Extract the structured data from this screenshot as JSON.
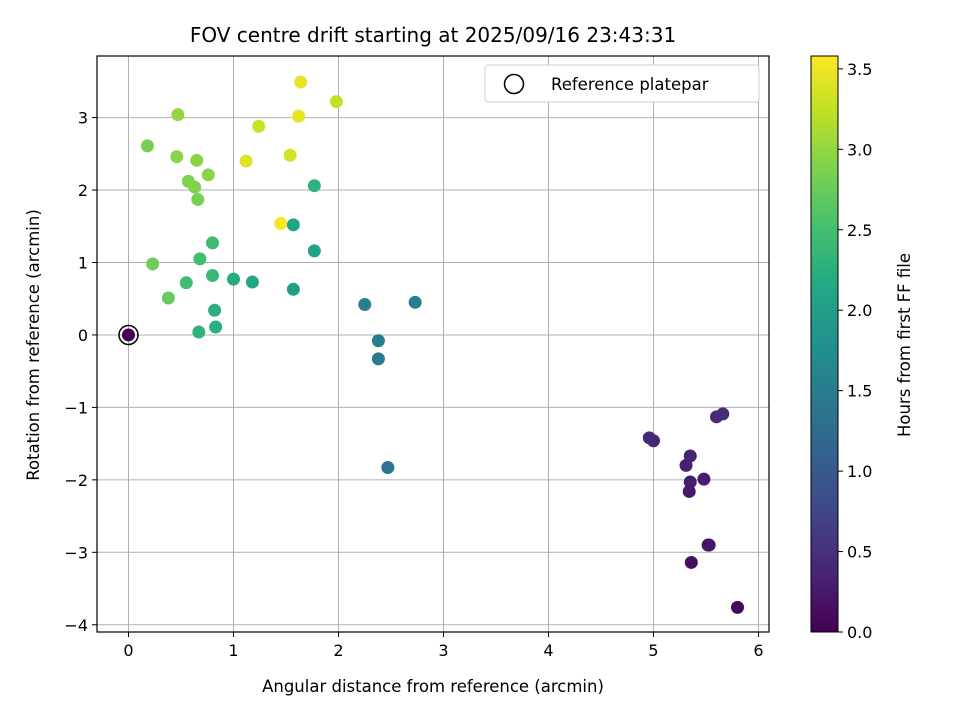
{
  "chart_data": {
    "type": "scatter",
    "title": "FOV centre drift starting at 2025/09/16 23:43:31",
    "xlabel": "Angular distance from reference (arcmin)",
    "ylabel": "Rotation from reference (arcmin)",
    "xlim": [
      -0.3,
      6.1
    ],
    "ylim": [
      -4.1,
      3.85
    ],
    "xticks": [
      0,
      1,
      2,
      3,
      4,
      5,
      6
    ],
    "yticks": [
      -4,
      -3,
      -2,
      -1,
      0,
      1,
      2,
      3
    ],
    "xtick_labels": [
      "0",
      "1",
      "2",
      "3",
      "4",
      "5",
      "6"
    ],
    "ytick_labels": [
      "−4",
      "−3",
      "−2",
      "−1",
      "0",
      "1",
      "2",
      "3"
    ],
    "grid": true,
    "legend": {
      "location": "top-right",
      "label": "Reference platepar"
    },
    "reference_point": {
      "x": 0,
      "y": 0,
      "hours": 0.0
    },
    "colorbar": {
      "label": "Hours from first FF file",
      "colormap": "viridis",
      "range": [
        0.0,
        3.58
      ],
      "ticks": [
        0.0,
        0.5,
        1.0,
        1.5,
        2.0,
        2.5,
        3.0,
        3.5
      ],
      "tick_labels": [
        "0.0",
        "0.5",
        "1.0",
        "1.5",
        "2.0",
        "2.5",
        "3.0",
        "3.5"
      ]
    },
    "points": [
      {
        "x": 5.8,
        "y": -3.76,
        "hours": 0.1
      },
      {
        "x": 5.36,
        "y": -3.14,
        "hours": 0.15
      },
      {
        "x": 5.52,
        "y": -2.9,
        "hours": 0.2
      },
      {
        "x": 5.53,
        "y": -2.9,
        "hours": 0.22
      },
      {
        "x": 5.34,
        "y": -2.16,
        "hours": 0.25
      },
      {
        "x": 5.35,
        "y": -2.03,
        "hours": 0.28
      },
      {
        "x": 5.48,
        "y": -1.99,
        "hours": 0.3
      },
      {
        "x": 5.31,
        "y": -1.8,
        "hours": 0.32
      },
      {
        "x": 5.35,
        "y": -1.67,
        "hours": 0.35
      },
      {
        "x": 5.0,
        "y": -1.46,
        "hours": 0.38
      },
      {
        "x": 4.96,
        "y": -1.42,
        "hours": 0.4
      },
      {
        "x": 5.6,
        "y": -1.13,
        "hours": 0.42
      },
      {
        "x": 5.66,
        "y": -1.09,
        "hours": 0.45
      },
      {
        "x": 2.47,
        "y": -1.83,
        "hours": 1.4
      },
      {
        "x": 2.38,
        "y": -0.33,
        "hours": 1.45
      },
      {
        "x": 2.38,
        "y": -0.08,
        "hours": 1.5
      },
      {
        "x": 2.25,
        "y": 0.42,
        "hours": 1.55
      },
      {
        "x": 2.73,
        "y": 0.45,
        "hours": 1.5
      },
      {
        "x": 1.57,
        "y": 0.63,
        "hours": 2.0
      },
      {
        "x": 1.77,
        "y": 1.16,
        "hours": 2.05
      },
      {
        "x": 1.57,
        "y": 1.52,
        "hours": 2.1
      },
      {
        "x": 1.18,
        "y": 0.73,
        "hours": 2.15
      },
      {
        "x": 1.0,
        "y": 0.77,
        "hours": 2.2
      },
      {
        "x": 0.83,
        "y": 0.11,
        "hours": 2.25
      },
      {
        "x": 0.82,
        "y": 0.34,
        "hours": 2.25
      },
      {
        "x": 0.67,
        "y": 0.04,
        "hours": 2.3
      },
      {
        "x": 1.77,
        "y": 2.06,
        "hours": 2.3
      },
      {
        "x": 0.8,
        "y": 0.82,
        "hours": 2.4
      },
      {
        "x": 0.55,
        "y": 0.72,
        "hours": 2.45
      },
      {
        "x": 0.8,
        "y": 1.27,
        "hours": 2.45
      },
      {
        "x": 0.68,
        "y": 1.05,
        "hours": 2.5
      },
      {
        "x": 0.38,
        "y": 0.51,
        "hours": 2.75
      },
      {
        "x": 0.23,
        "y": 0.98,
        "hours": 2.8
      },
      {
        "x": 0.66,
        "y": 1.87,
        "hours": 2.85
      },
      {
        "x": 0.18,
        "y": 2.61,
        "hours": 2.85
      },
      {
        "x": 0.57,
        "y": 2.12,
        "hours": 2.9
      },
      {
        "x": 0.63,
        "y": 2.04,
        "hours": 2.9
      },
      {
        "x": 0.46,
        "y": 2.46,
        "hours": 2.95
      },
      {
        "x": 0.65,
        "y": 2.41,
        "hours": 2.95
      },
      {
        "x": 0.76,
        "y": 2.21,
        "hours": 2.95
      },
      {
        "x": 0.47,
        "y": 3.04,
        "hours": 3.0
      },
      {
        "x": 1.98,
        "y": 3.22,
        "hours": 3.25
      },
      {
        "x": 1.24,
        "y": 2.88,
        "hours": 3.3
      },
      {
        "x": 1.54,
        "y": 2.48,
        "hours": 3.35
      },
      {
        "x": 1.12,
        "y": 2.4,
        "hours": 3.4
      },
      {
        "x": 1.62,
        "y": 3.02,
        "hours": 3.45
      },
      {
        "x": 1.64,
        "y": 3.49,
        "hours": 3.45
      },
      {
        "x": 1.45,
        "y": 1.54,
        "hours": 3.55
      }
    ]
  }
}
